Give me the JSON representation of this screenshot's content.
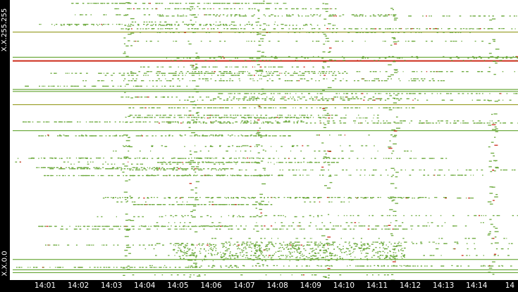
{
  "chart_data": {
    "type": "scatter",
    "y_axis": {
      "top_label": "X.X.255.255",
      "bottom_label": "X.X.0.0"
    },
    "x_axis": {
      "tick_labels": [
        "14:01",
        "14:02",
        "14:03",
        "14:04",
        "14:05",
        "14:06",
        "14:07",
        "14:08",
        "14:09",
        "14:10",
        "14:11",
        "14:12",
        "14:13",
        "14:14",
        "14"
      ],
      "range": [
        "14:00",
        "14:14"
      ]
    },
    "colors": {
      "background": "#ffffff",
      "axis_bar": "#000000",
      "axis_text": "#ffffff",
      "point_green": "#6aa83a",
      "point_olive": "#9aa02a",
      "point_red": "#cc2a1a"
    },
    "series": [
      {
        "lines": [
          {
            "y": 0.887,
            "x0": "14:00",
            "x1": "14:14",
            "color": "olive"
          },
          {
            "y": 0.797,
            "x0": "14:00",
            "x1": "14:14",
            "color": "green"
          },
          {
            "y": 0.785,
            "x0": "14:00",
            "x1": "14:14",
            "color": "red"
          },
          {
            "y": 0.682,
            "x0": "14:00",
            "x1": "14:14",
            "color": "green"
          },
          {
            "y": 0.675,
            "x0": "14:00",
            "x1": "14:14",
            "color": "green"
          },
          {
            "y": 0.628,
            "x0": "14:00",
            "x1": "14:14",
            "color": "olive"
          },
          {
            "y": 0.535,
            "x0": "14:00",
            "x1": "14:14",
            "color": "green"
          },
          {
            "y": 0.075,
            "x0": "14:00",
            "x1": "14:14",
            "color": "green"
          },
          {
            "y": 0.038,
            "x0": "14:00",
            "x1": "14:14",
            "color": "green"
          },
          {
            "y": 0.028,
            "x0": "14:00",
            "x1": "14:14",
            "color": "green"
          }
        ],
        "bursts_at": [
          "14:03",
          "14:05",
          "14:07",
          "14:09",
          "14:11",
          "14:14"
        ]
      }
    ]
  }
}
